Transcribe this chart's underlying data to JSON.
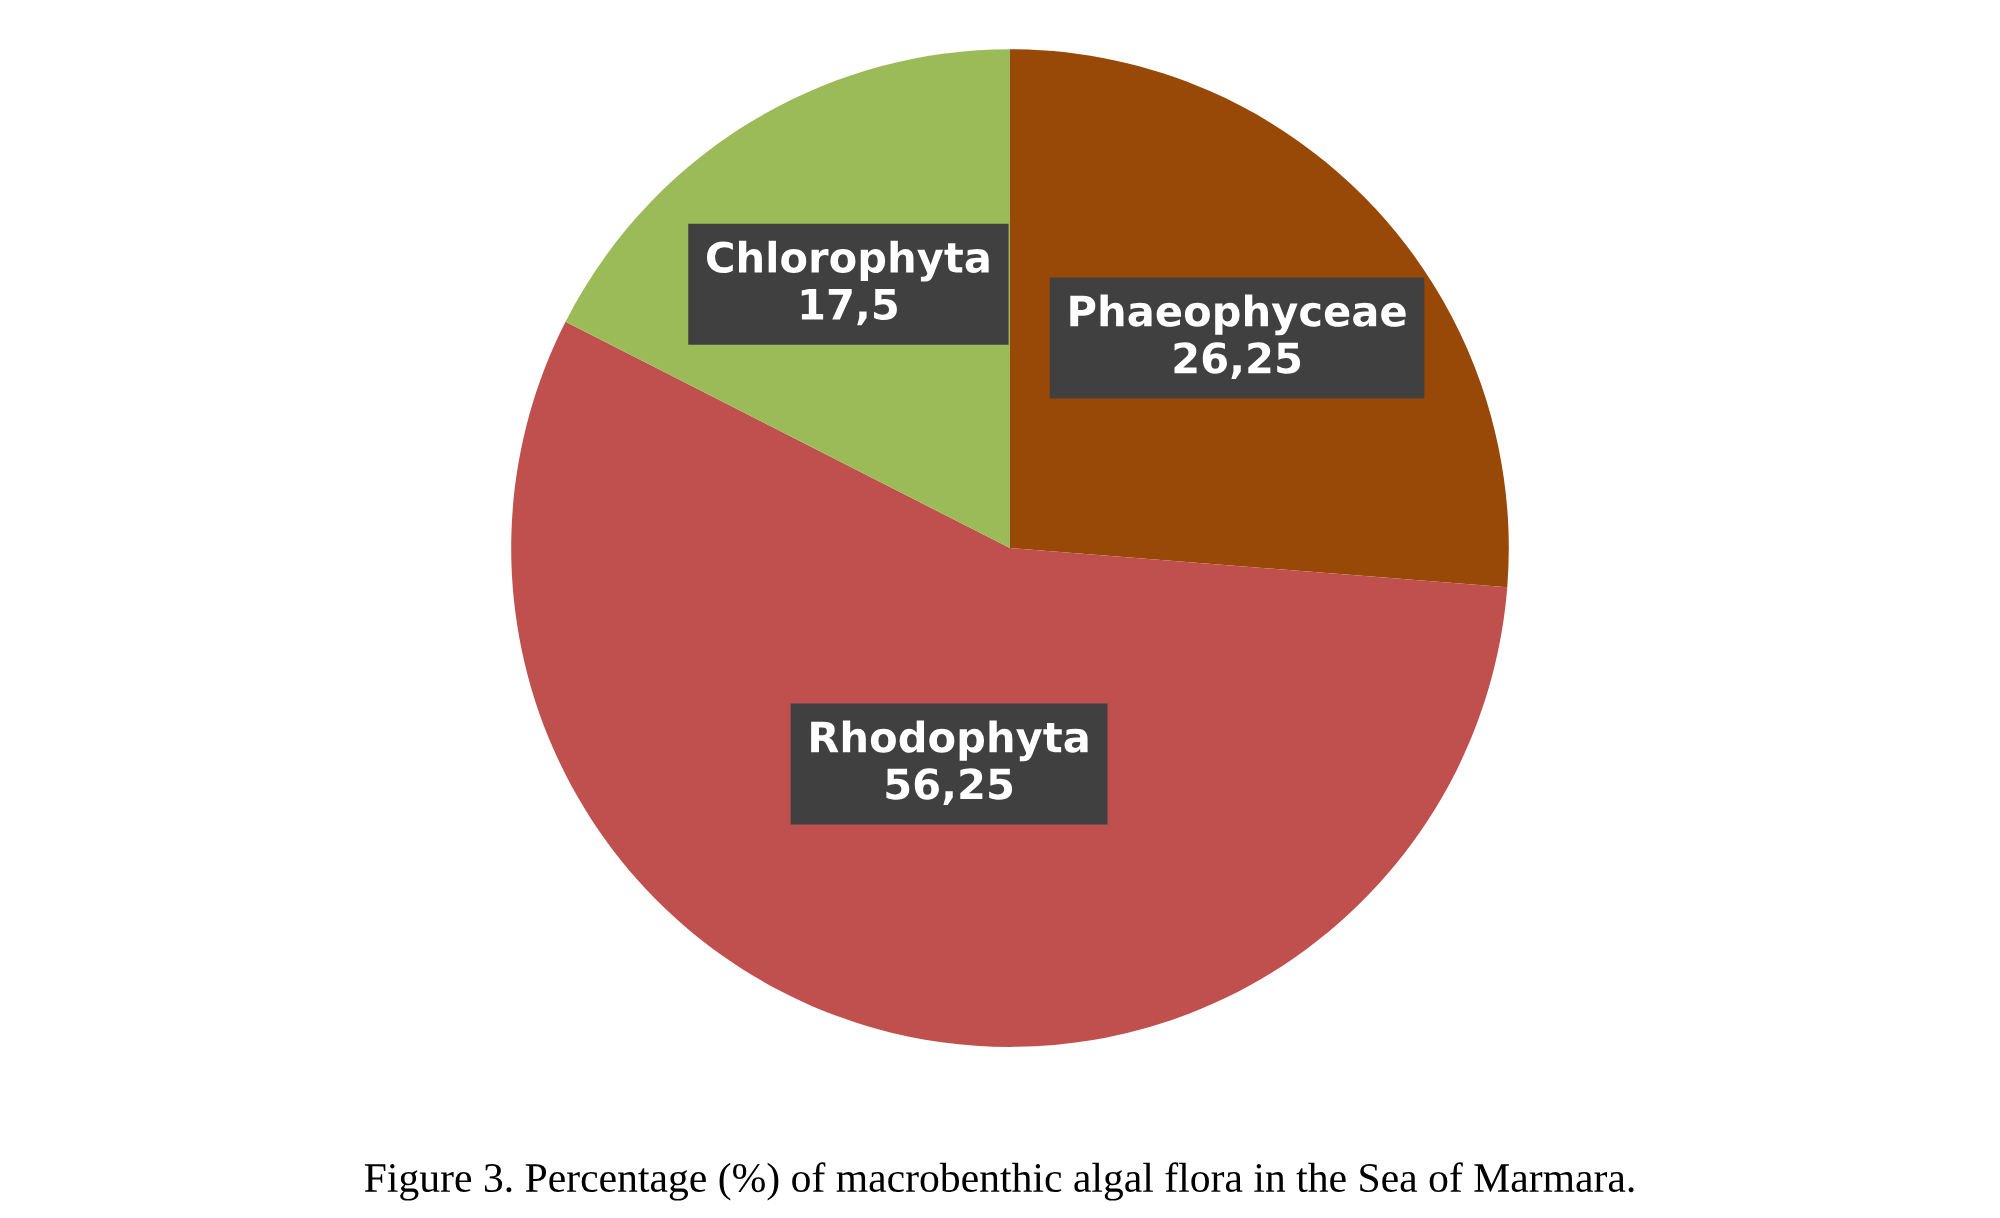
{
  "chart_data": {
    "type": "pie",
    "categories": [
      "Phaeophyceae",
      "Rhodophyta",
      "Chlorophyta"
    ],
    "values": [
      26.25,
      56.25,
      17.5
    ],
    "value_labels": [
      "26,25",
      "56,25",
      "17,5"
    ],
    "colors": [
      "#984807",
      "#c0504d",
      "#9bbb59"
    ],
    "annotations": [
      "Figure 3. Percentage (%) of macrobenthic algal flora in the Sea of Marmara."
    ]
  }
}
